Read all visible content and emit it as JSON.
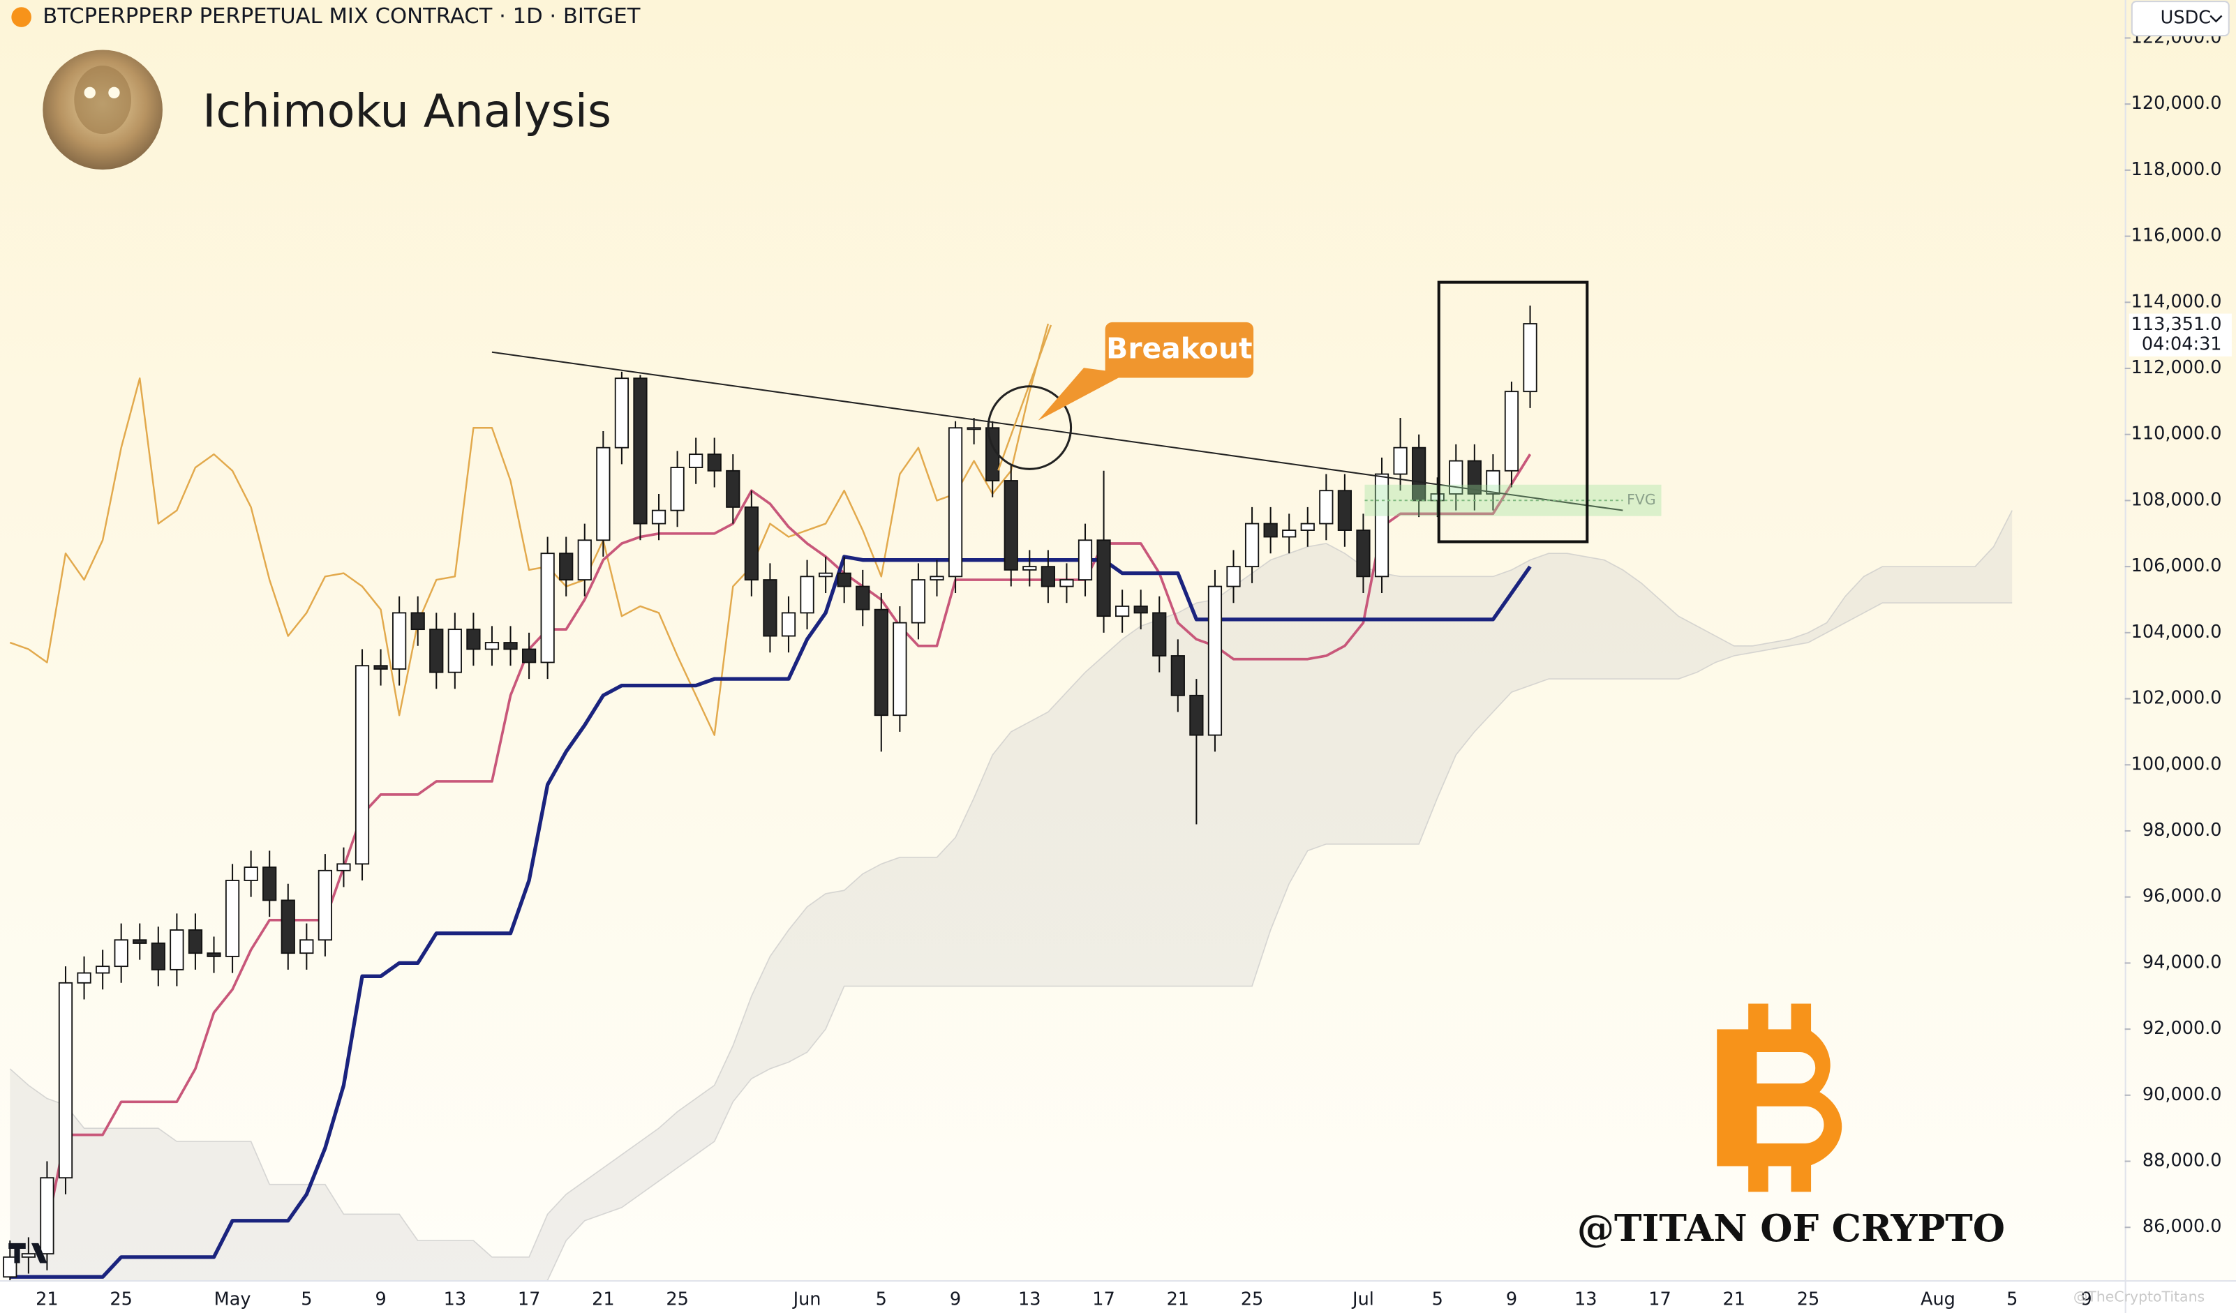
{
  "header": "BTCPERPPERP PERPETUAL MIX CONTRACT · 1D · BITGET",
  "currency": "USDC",
  "watermark": "@TITAN OF CRYPTO",
  "corner_mark": "@TheCryptoTitans",
  "chart_data": {
    "type": "candlestick",
    "title": "Ichimoku Analysis",
    "annotations": {
      "breakout": "Breakout",
      "fvg": "FVG"
    },
    "categories": [
      null,
      null,
      "21",
      null,
      null,
      null,
      "25",
      null,
      null,
      null,
      null,
      null,
      "May",
      null,
      null,
      null,
      "5",
      null,
      null,
      null,
      "9",
      null,
      null,
      null,
      "13",
      null,
      null,
      null,
      "17",
      null,
      null,
      null,
      "21",
      null,
      null,
      null,
      "25",
      null,
      null,
      null,
      null,
      null,
      null,
      "Jun",
      null,
      null,
      null,
      "5",
      null,
      null,
      null,
      "9",
      null,
      null,
      null,
      "13",
      null,
      null,
      null,
      "17",
      null,
      null,
      null,
      "21",
      null,
      null,
      null,
      "25",
      null,
      null,
      null,
      null,
      null,
      "Jul",
      null,
      null,
      null,
      "5",
      null,
      null,
      null,
      "9",
      null,
      null,
      null,
      "13",
      null,
      null,
      null,
      "17",
      null,
      null,
      null,
      "21",
      null,
      null,
      null,
      "25",
      null,
      null,
      null,
      null,
      null,
      null,
      "Aug",
      null,
      null,
      null,
      "5",
      null,
      null,
      null,
      "9",
      null
    ],
    "open": [
      84500,
      85100,
      85200,
      87500,
      93400,
      93700,
      93900,
      94700,
      94600,
      93800,
      95000,
      94300,
      94200,
      96500,
      96900,
      95900,
      94300,
      94700,
      96800,
      97000,
      103000,
      102900,
      104600,
      104100,
      102800,
      104100,
      103500,
      103700,
      103500,
      103100,
      106400,
      105600,
      106800,
      109600,
      111700,
      107300,
      107700,
      109000,
      109400,
      108900,
      107800,
      105600,
      103900,
      104600,
      105700,
      105800,
      105400,
      104700,
      101500,
      104300,
      105600,
      105700,
      110200,
      110200,
      108600,
      105900,
      106000,
      105400,
      105600,
      106800,
      104500,
      104800,
      104600,
      103300,
      102100,
      100900,
      105400,
      106000,
      107300,
      106900,
      107100,
      107300,
      108300,
      107100,
      105700,
      108800,
      109600,
      108000,
      108200,
      109200,
      108200,
      108900,
      111300,
      null,
      null,
      null,
      null,
      null,
      null,
      null,
      null,
      null,
      null,
      null,
      null,
      null,
      null,
      null,
      null,
      null,
      null,
      null,
      null,
      null,
      null,
      null,
      null,
      null,
      null,
      null,
      null,
      null,
      null,
      null
    ],
    "high": [
      85600,
      85700,
      88000,
      93900,
      94200,
      94400,
      95200,
      95200,
      95100,
      95500,
      95500,
      94800,
      97000,
      97400,
      97400,
      96400,
      95200,
      97300,
      97500,
      103500,
      103500,
      105100,
      105100,
      104600,
      104600,
      104600,
      104200,
      104200,
      104000,
      106900,
      106900,
      107300,
      110100,
      111900,
      111800,
      108200,
      109500,
      109900,
      109900,
      109400,
      108300,
      106100,
      105100,
      106200,
      106300,
      106300,
      105900,
      105200,
      104800,
      106100,
      106200,
      110400,
      110500,
      110400,
      109100,
      106500,
      106500,
      106100,
      107300,
      108900,
      105300,
      105300,
      105100,
      103800,
      102600,
      105900,
      106500,
      107800,
      107800,
      107600,
      107800,
      108800,
      108800,
      107600,
      109300,
      110500,
      110000,
      108700,
      109700,
      109700,
      109400,
      111600,
      113900,
      null,
      null,
      null,
      null,
      null,
      null,
      null,
      null,
      null,
      null,
      null,
      null,
      null,
      null,
      null,
      null,
      null,
      null,
      null,
      null,
      null,
      null,
      null,
      null,
      null,
      null,
      null,
      null,
      null,
      null,
      null
    ],
    "low": [
      84000,
      84600,
      84700,
      87000,
      92900,
      93200,
      93400,
      94100,
      93300,
      93300,
      93800,
      93700,
      93700,
      96000,
      95400,
      93800,
      93800,
      94200,
      96300,
      96500,
      102400,
      102400,
      103600,
      102300,
      102300,
      103000,
      103000,
      103000,
      102600,
      102600,
      105100,
      105100,
      106300,
      109100,
      106800,
      106800,
      107200,
      108500,
      108400,
      107300,
      105100,
      103400,
      103400,
      104100,
      105200,
      104900,
      104200,
      100400,
      101000,
      103800,
      105100,
      105200,
      109700,
      108100,
      105400,
      105400,
      104900,
      104900,
      105100,
      104000,
      104000,
      104100,
      102800,
      101600,
      98200,
      100400,
      104900,
      105500,
      106400,
      106400,
      106600,
      106800,
      106600,
      105200,
      105200,
      108300,
      107500,
      107500,
      107700,
      107700,
      107700,
      108400,
      110800,
      null,
      null,
      null,
      null,
      null,
      null,
      null,
      null,
      null,
      null,
      null,
      null,
      null,
      null,
      null,
      null,
      null,
      null,
      null,
      null,
      null,
      null,
      null,
      null,
      null,
      null,
      null,
      null,
      null,
      null,
      null
    ],
    "close": [
      85100,
      85200,
      87500,
      93400,
      93700,
      93900,
      94700,
      94600,
      93800,
      95000,
      94300,
      94200,
      96500,
      96900,
      95900,
      94300,
      94700,
      96800,
      97000,
      103000,
      102900,
      104600,
      104100,
      102800,
      104100,
      103500,
      103700,
      103500,
      103100,
      106400,
      105600,
      106800,
      109600,
      111700,
      107300,
      107700,
      109000,
      109400,
      108900,
      107800,
      105600,
      103900,
      104600,
      105700,
      105800,
      105400,
      104700,
      101500,
      104300,
      105600,
      105700,
      110200,
      110200,
      108600,
      105900,
      106000,
      105400,
      105600,
      106800,
      104500,
      104800,
      104600,
      103300,
      102100,
      100900,
      105400,
      106000,
      107300,
      106900,
      107100,
      107300,
      108300,
      107100,
      105700,
      108800,
      109600,
      108000,
      108200,
      109200,
      108200,
      108900,
      111300,
      113351,
      null,
      null,
      null,
      null,
      null,
      null,
      null,
      null,
      null,
      null,
      null,
      null,
      null,
      null,
      null,
      null,
      null,
      null,
      null,
      null,
      null,
      null,
      null,
      null,
      null,
      null,
      null,
      null,
      null,
      null,
      null
    ],
    "up_color": "#ffffff",
    "down_color": "#2b2b2b",
    "series": [
      {
        "color": "#e2a94c",
        "values": [
          103700,
          103500,
          103100,
          106400,
          105600,
          106800,
          109600,
          111700,
          107300,
          107700,
          109000,
          109400,
          108900,
          107800,
          105600,
          103900,
          104600,
          105700,
          105800,
          105400,
          104700,
          101500,
          104300,
          105600,
          105700,
          110200,
          110200,
          108600,
          105900,
          106000,
          105400,
          105600,
          106800,
          104500,
          104800,
          104600,
          103300,
          102100,
          100900,
          105400,
          106000,
          107300,
          106900,
          107100,
          107300,
          108300,
          107100,
          105700,
          108800,
          109600,
          108000,
          108200,
          109200,
          108200,
          108900,
          111300,
          113351,
          null,
          null,
          null,
          null,
          null,
          null,
          null,
          null,
          null,
          null,
          null,
          null,
          null,
          null,
          null,
          null,
          null,
          null,
          null,
          null,
          null,
          null,
          null,
          null,
          null,
          null,
          null,
          null,
          null,
          null,
          null,
          null,
          null,
          null,
          null,
          null,
          null,
          null,
          null,
          null,
          null,
          null,
          null,
          null,
          null,
          null,
          null,
          null,
          null,
          null,
          null,
          null,
          null,
          null,
          null,
          null,
          null
        ]
      },
      {
        "color": "#c8577a",
        "values": [
          null,
          null,
          86000,
          88800,
          88800,
          88800,
          89800,
          89800,
          89800,
          89800,
          90800,
          92500,
          93200,
          94400,
          95300,
          95300,
          95300,
          95300,
          96900,
          98500,
          99100,
          99100,
          99100,
          99500,
          99500,
          99500,
          99500,
          102100,
          103500,
          104100,
          104100,
          105000,
          106200,
          106700,
          106900,
          107000,
          107000,
          107000,
          107000,
          107300,
          108300,
          107900,
          107200,
          106700,
          106300,
          105800,
          105400,
          105000,
          104200,
          103600,
          103600,
          105600,
          105600,
          105600,
          105600,
          105600,
          105600,
          105600,
          105600,
          106700,
          106700,
          106700,
          105800,
          104300,
          103800,
          103600,
          103200,
          103200,
          103200,
          103200,
          103200,
          103300,
          103600,
          104300,
          107200,
          107600,
          107600,
          107600,
          107600,
          107600,
          107600,
          108500,
          109400,
          null,
          null,
          null,
          null,
          null,
          null,
          null,
          null,
          null,
          null,
          null,
          null,
          null,
          null,
          null,
          null,
          null,
          null,
          null,
          null,
          null,
          null,
          null,
          null,
          null,
          null,
          null,
          null,
          null,
          null,
          null
        ]
      },
      {
        "color": "#1a237e",
        "values": [
          84500,
          84500,
          84500,
          84500,
          84500,
          84500,
          85100,
          85100,
          85100,
          85100,
          85100,
          85100,
          86200,
          86200,
          86200,
          86200,
          87000,
          88400,
          90300,
          93600,
          93600,
          94000,
          94000,
          94900,
          94900,
          94900,
          94900,
          94900,
          96500,
          99400,
          100400,
          101200,
          102100,
          102400,
          102400,
          102400,
          102400,
          102400,
          102600,
          102600,
          102600,
          102600,
          102600,
          103800,
          104600,
          106300,
          106200,
          106200,
          106200,
          106200,
          106200,
          106200,
          106200,
          106200,
          106200,
          106200,
          106200,
          106200,
          106200,
          106200,
          105800,
          105800,
          105800,
          105800,
          104400,
          104400,
          104400,
          104400,
          104400,
          104400,
          104400,
          104400,
          104400,
          104400,
          104400,
          104400,
          104400,
          104400,
          104400,
          104400,
          104400,
          105200,
          106000,
          null,
          null,
          null,
          null,
          null,
          null,
          null,
          null,
          null,
          null,
          null,
          null,
          null,
          null,
          null,
          null,
          null,
          null,
          null,
          null,
          null,
          null,
          null,
          null,
          null,
          null,
          null,
          null,
          null,
          null,
          null
        ]
      }
    ],
    "cloud": {
      "color": "#c8c8c8",
      "upper": [
        90800,
        90300,
        89900,
        89700,
        89000,
        89000,
        89000,
        89000,
        89000,
        88600,
        88600,
        88600,
        88600,
        88600,
        87300,
        87300,
        87300,
        87300,
        86400,
        86400,
        86400,
        86400,
        85600,
        85600,
        85600,
        85600,
        85100,
        85100,
        85100,
        86400,
        87000,
        87400,
        87800,
        88200,
        88600,
        89000,
        89500,
        89900,
        90300,
        91500,
        93000,
        94200,
        95000,
        95700,
        96100,
        96200,
        96700,
        97000,
        97200,
        97200,
        97200,
        97800,
        99000,
        100300,
        101000,
        101300,
        101600,
        102200,
        102800,
        103300,
        103800,
        104200,
        104400,
        104600,
        104900,
        105000,
        105400,
        105800,
        106200,
        106400,
        106600,
        106700,
        106400,
        106000,
        105800,
        105700,
        105700,
        105700,
        105700,
        105700,
        105700,
        105900,
        106200,
        106400,
        106400,
        106300,
        106200,
        105900,
        105500,
        105000,
        104500,
        104200,
        103900,
        103600,
        103600,
        103700,
        103800,
        104000,
        104300,
        105100,
        105700,
        106000,
        106000,
        106000,
        106000,
        106000,
        106000,
        106600,
        107700,
        null,
        null,
        null,
        null,
        null
      ],
      "lower": [
        84000,
        84000,
        84000,
        84000,
        84000,
        84000,
        84000,
        84000,
        84000,
        84000,
        84000,
        84000,
        84000,
        84000,
        84000,
        84000,
        84000,
        84000,
        84000,
        84000,
        84000,
        84000,
        84000,
        84000,
        84000,
        84000,
        84000,
        84000,
        84000,
        84400,
        85600,
        86200,
        86400,
        86600,
        87000,
        87400,
        87800,
        88200,
        88600,
        89800,
        90500,
        90800,
        91000,
        91300,
        92000,
        93300,
        93300,
        93300,
        93300,
        93300,
        93300,
        93300,
        93300,
        93300,
        93300,
        93300,
        93300,
        93300,
        93300,
        93300,
        93300,
        93300,
        93300,
        93300,
        93300,
        93300,
        93300,
        93300,
        95000,
        96400,
        97400,
        97600,
        97600,
        97600,
        97600,
        97600,
        97600,
        99000,
        100300,
        101000,
        101600,
        102200,
        102400,
        102600,
        102600,
        102600,
        102600,
        102600,
        102600,
        102600,
        102600,
        102800,
        103100,
        103300,
        103400,
        103500,
        103600,
        103700,
        104000,
        104300,
        104600,
        104900,
        104900,
        104900,
        104900,
        104900,
        104900,
        104900,
        104900,
        null,
        null,
        null,
        null,
        null
      ]
    },
    "ylim": [
      84400,
      123150
    ],
    "yticks": [
      {
        "value": 86000,
        "label": "86,000.0"
      },
      {
        "value": 88000,
        "label": "88,000.0"
      },
      {
        "value": 90000,
        "label": "90,000.0"
      },
      {
        "value": 92000,
        "label": "92,000.0"
      },
      {
        "value": 94000,
        "label": "94,000.0"
      },
      {
        "value": 96000,
        "label": "96,000.0"
      },
      {
        "value": 98000,
        "label": "98,000.0"
      },
      {
        "value": 100000,
        "label": "100,000.0"
      },
      {
        "value": 102000,
        "label": "102,000.0"
      },
      {
        "value": 104000,
        "label": "104,000.0"
      },
      {
        "value": 106000,
        "label": "106,000.0"
      },
      {
        "value": 108000,
        "label": "108,000.0"
      },
      {
        "value": 110000,
        "label": "110,000.0"
      },
      {
        "value": 112000,
        "label": "112,000.0"
      },
      {
        "value": 114000,
        "label": "114,000.0"
      },
      {
        "value": 116000,
        "label": "116,000.0"
      },
      {
        "value": 118000,
        "label": "118,000.0"
      },
      {
        "value": 120000,
        "label": "120,000.0"
      },
      {
        "value": 122000,
        "label": "122,000.0"
      }
    ],
    "last_price": {
      "value": 113351,
      "label": "113,351.0"
    },
    "countdown": "04:04:31",
    "grid": false
  }
}
